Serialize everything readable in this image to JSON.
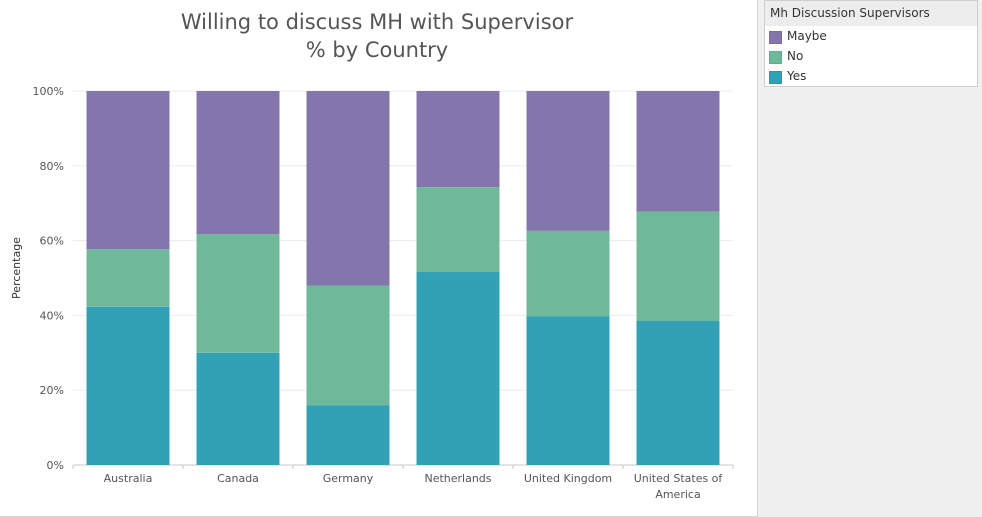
{
  "chart_data": {
    "type": "bar",
    "stacked": true,
    "title": "Willing to discuss MH with Supervisor",
    "subtitle": "% by Country",
    "xlabel": "",
    "ylabel": "Percentage",
    "ylim": [
      0,
      100
    ],
    "yticks": [
      "0%",
      "20%",
      "40%",
      "60%",
      "80%",
      "100%"
    ],
    "yticks_values": [
      0,
      20,
      40,
      60,
      80,
      100
    ],
    "grid": true,
    "legend_position": "right",
    "legend_title": "Mh Discussion Supervisors",
    "categories": [
      "Australia",
      "Canada",
      "Germany",
      "Netherlands",
      "United Kingdom",
      "United States of America"
    ],
    "category_lines": [
      [
        "Australia"
      ],
      [
        "Canada"
      ],
      [
        "Germany"
      ],
      [
        "Netherlands"
      ],
      [
        "United Kingdom"
      ],
      [
        "United States of",
        "America"
      ]
    ],
    "series": [
      {
        "name": "Yes",
        "color": "#33a1b5",
        "values": [
          42.3,
          30.0,
          16.0,
          51.6,
          39.8,
          38.5
        ]
      },
      {
        "name": "No",
        "color": "#6fb99a",
        "values": [
          15.4,
          31.7,
          32.0,
          22.7,
          22.8,
          29.3
        ]
      },
      {
        "name": "Maybe",
        "color": "#8476ac",
        "values": [
          42.3,
          38.3,
          52.0,
          25.7,
          37.4,
          32.2
        ]
      }
    ],
    "legend_order": [
      "Maybe",
      "No",
      "Yes"
    ]
  },
  "legend": {
    "title": "Mh Discussion Supervisors",
    "items": [
      {
        "label": "Maybe",
        "color": "#8476ac"
      },
      {
        "label": "No",
        "color": "#6fb99a"
      },
      {
        "label": "Yes",
        "color": "#33a1b5"
      }
    ]
  }
}
